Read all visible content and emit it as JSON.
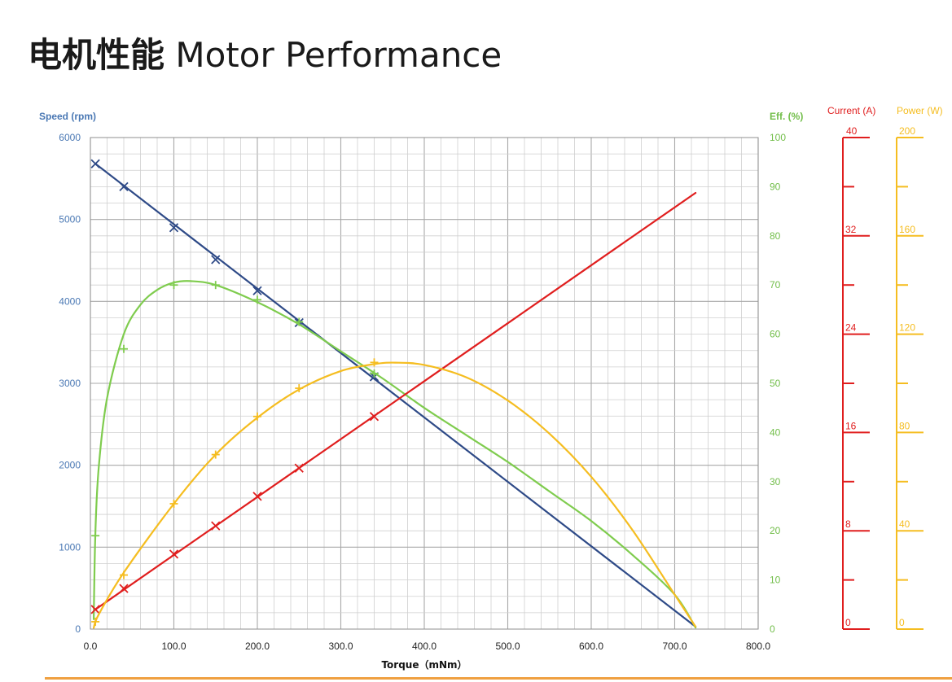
{
  "title": {
    "zh": "电机性能",
    "en": "Motor Performance"
  },
  "colors": {
    "speed": "#2e4a87",
    "efficiency": "#7fcc4e",
    "current": "#e01e1e",
    "power": "#f5bd20",
    "speed_axis_text": "#4a78b4",
    "eff_axis_text": "#72be4a",
    "current_axis_text": "#e01e1e",
    "power_axis_text": "#f5bd20",
    "footer_line": "#f0a040",
    "grid": "#b9b9b9"
  },
  "chart_data": {
    "type": "line",
    "title": "电机性能 Motor Performance",
    "xlabel": "Torque（mNm）",
    "x_ticks": [
      "0.0",
      "100.0",
      "200.0",
      "300.0",
      "400.0",
      "500.0",
      "600.0",
      "700.0",
      "800.0"
    ],
    "xlim": [
      0,
      800
    ],
    "grid": true,
    "axes": {
      "speed": {
        "label": "Speed (rpm)",
        "range": [
          0,
          6000
        ],
        "ticks": [
          "0",
          "1000",
          "2000",
          "3000",
          "4000",
          "5000",
          "6000"
        ],
        "side": "left"
      },
      "efficiency": {
        "label": "Eff. (%)",
        "range": [
          0,
          100
        ],
        "ticks": [
          "0",
          "10",
          "20",
          "30",
          "40",
          "50",
          "60",
          "70",
          "80",
          "90",
          "100"
        ],
        "side": "right"
      },
      "current": {
        "label": "Current (A)",
        "range": [
          0,
          40
        ],
        "ticks": [
          "0",
          "8",
          "16",
          "24",
          "32",
          "40"
        ],
        "side": "right-scale"
      },
      "power": {
        "label": "Power (W)",
        "range": [
          0,
          200
        ],
        "ticks": [
          "0",
          "40",
          "80",
          "120",
          "160",
          "200"
        ],
        "side": "right-scale"
      }
    },
    "series": [
      {
        "name": "Speed (rpm)",
        "axis": "speed",
        "marker": "x",
        "curve": [
          [
            6,
            5680
          ],
          [
            725,
            30
          ]
        ],
        "points": [
          [
            6,
            5680
          ],
          [
            40,
            5400
          ],
          [
            100,
            4900
          ],
          [
            150,
            4510
          ],
          [
            200,
            4130
          ],
          [
            250,
            3740
          ],
          [
            340,
            3080
          ]
        ]
      },
      {
        "name": "Eff. (%)",
        "axis": "efficiency",
        "marker": "+",
        "curve": [
          [
            4,
            2
          ],
          [
            6,
            20
          ],
          [
            10,
            33
          ],
          [
            20,
            47
          ],
          [
            40,
            60
          ],
          [
            60,
            66
          ],
          [
            80,
            69
          ],
          [
            100,
            70.5
          ],
          [
            120,
            70.8
          ],
          [
            150,
            70
          ],
          [
            200,
            66.5
          ],
          [
            250,
            62
          ],
          [
            300,
            56.5
          ],
          [
            350,
            51
          ],
          [
            400,
            45
          ],
          [
            450,
            39.5
          ],
          [
            500,
            34
          ],
          [
            550,
            28
          ],
          [
            600,
            22
          ],
          [
            650,
            15
          ],
          [
            700,
            7
          ],
          [
            725,
            0.3
          ]
        ],
        "points": [
          [
            6,
            19
          ],
          [
            40,
            57
          ],
          [
            100,
            70
          ],
          [
            150,
            70
          ],
          [
            200,
            67
          ],
          [
            250,
            62.5
          ],
          [
            340,
            52
          ]
        ]
      },
      {
        "name": "Current (A)",
        "axis": "current",
        "marker": "x",
        "curve": [
          [
            6,
            1.6
          ],
          [
            725,
            35.5
          ]
        ],
        "points": [
          [
            6,
            1.6
          ],
          [
            40,
            3.3
          ],
          [
            100,
            6.1
          ],
          [
            150,
            8.4
          ],
          [
            200,
            10.8
          ],
          [
            250,
            13.1
          ],
          [
            340,
            17.3
          ]
        ]
      },
      {
        "name": "Power (W)",
        "axis": "power",
        "marker": "+",
        "curve": [
          [
            4,
            0.5
          ],
          [
            10,
            6
          ],
          [
            40,
            23
          ],
          [
            100,
            51
          ],
          [
            150,
            71
          ],
          [
            200,
            86
          ],
          [
            250,
            97.5
          ],
          [
            300,
            105
          ],
          [
            340,
            107.8
          ],
          [
            365,
            108.4
          ],
          [
            400,
            107.5
          ],
          [
            450,
            102.5
          ],
          [
            500,
            93
          ],
          [
            550,
            79.5
          ],
          [
            600,
            62
          ],
          [
            650,
            40
          ],
          [
            700,
            14
          ],
          [
            725,
            1
          ]
        ],
        "points": [
          [
            6,
            3
          ],
          [
            40,
            22
          ],
          [
            100,
            51
          ],
          [
            150,
            71
          ],
          [
            200,
            86.5
          ],
          [
            250,
            98
          ],
          [
            340,
            108.5
          ]
        ]
      }
    ]
  }
}
